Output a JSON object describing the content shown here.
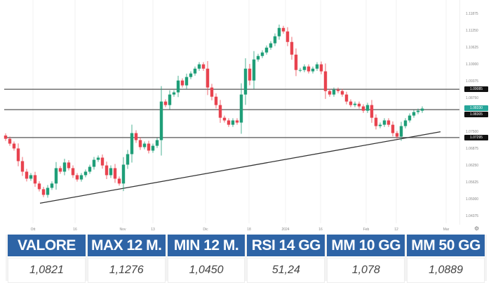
{
  "chart_data": {
    "type": "candlestick",
    "y_ticks": [
      "1.11875",
      "1.11250",
      "1.10625",
      "1.10000",
      "1.09375",
      "1.08750",
      "1.07500",
      "1.06875",
      "1.06250",
      "1.05625",
      "1.05000",
      "1.04375"
    ],
    "ylim": [
      1.04375,
      1.11875
    ],
    "x_ticks": [
      "Ott",
      "16",
      "Nov",
      "13",
      "Dic",
      "18",
      "2024",
      "16",
      "Feb",
      "12",
      "Mar"
    ],
    "closes": [
      1.0725,
      1.0707,
      1.0689,
      1.0642,
      1.0603,
      1.0577,
      1.059,
      1.0559,
      1.0538,
      1.0517,
      1.0543,
      1.0559,
      1.0616,
      1.0603,
      1.0637,
      1.0616,
      1.059,
      1.0574,
      1.059,
      1.0603,
      1.0621,
      1.0647,
      1.0655,
      1.0626,
      1.059,
      1.0616,
      1.0577,
      1.0559,
      1.0629,
      1.0668,
      1.0746,
      1.072,
      1.0694,
      1.0707,
      1.0681,
      1.0699,
      1.072,
      1.0863,
      1.085,
      1.0889,
      1.0897,
      1.0941,
      1.0923,
      1.0954,
      1.0967,
      1.0985,
      1.1001,
      1.0985,
      1.0915,
      1.0881,
      1.085,
      1.0803,
      1.0793,
      1.0777,
      1.0793,
      1.0785,
      1.0889,
      1.0985,
      1.0941,
      1.1019,
      1.1032,
      1.1045,
      1.1063,
      1.1079,
      1.1105,
      1.1136,
      1.1123,
      1.1084,
      1.1037,
      1.098,
      1.098,
      1.0993,
      1.0975,
      1.0985,
      1.1001,
      1.0975,
      1.0902,
      1.0889,
      1.0907,
      1.0902,
      1.0889,
      1.0863,
      1.085,
      1.0855,
      1.0845,
      1.0829,
      1.085,
      1.0803,
      1.0772,
      1.0777,
      1.0793,
      1.0777,
      1.0746,
      1.0733,
      1.0772,
      1.0793,
      1.0811,
      1.0824,
      1.0829,
      1.0837
    ],
    "horizontal_levels": [
      {
        "value": 1.09085,
        "label": "1.09085"
      },
      {
        "value": 1.0833,
        "label": "1.08330"
      },
      {
        "value": 1.07295,
        "label": "1.07295"
      }
    ],
    "extra_marker": {
      "value": 1.08305,
      "label": "1.08305"
    },
    "trendline": {
      "from": 1.0486,
      "to": 1.0751
    },
    "colors": {
      "up": "#1f9e78",
      "down": "#e8434f",
      "marker": "#111111",
      "current": "#26a69a"
    }
  },
  "table": {
    "headers": [
      "VALORE",
      "MAX 12 M.",
      "MIN 12 M.",
      "RSI 14 GG",
      "MM 10 GG",
      "MM 50 GG"
    ],
    "values": [
      "1,0821",
      "1,1276",
      "1,0450",
      "51,24",
      "1,078",
      "1,0889"
    ]
  },
  "settings_icon": "gear-icon"
}
